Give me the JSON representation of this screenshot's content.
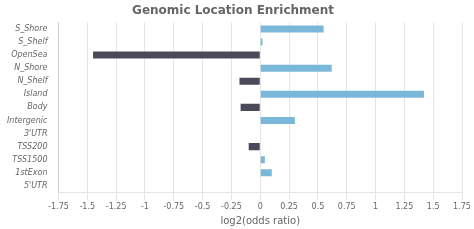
{
  "chart_data": {
    "type": "bar",
    "orientation": "horizontal",
    "title": "Genomic Location Enrichment",
    "xlabel": "log2(odds ratio)",
    "categories": [
      "S_Shore",
      "S_Shelf",
      "OpenSea",
      "N_Shore",
      "N_Shelf",
      "Island",
      "Body",
      "Intergenic",
      "3'UTR",
      "TSS200",
      "TSS1500",
      "1stExon",
      "5'UTR"
    ],
    "values": [
      0.55,
      0.02,
      -1.45,
      0.62,
      -0.18,
      1.42,
      -0.17,
      0.3,
      0.0,
      -0.1,
      0.04,
      0.1,
      0.0
    ],
    "colors": [
      "#7ab8d9",
      "#7ab8d9",
      "#4a4a5a",
      "#7ab8d9",
      "#4a4a5a",
      "#7ab8d9",
      "#4a4a5a",
      "#7ab8d9",
      "#7ab8d9",
      "#4a4a5a",
      "#7ab8d9",
      "#7ab8d9",
      "#7ab8d9"
    ],
    "xlim": [
      -1.75,
      1.75
    ],
    "xticks": [
      -1.75,
      -1.5,
      -1.25,
      -1.0,
      -0.75,
      -0.5,
      -0.25,
      0,
      0.25,
      0.5,
      0.75,
      1.0,
      1.25,
      1.5,
      1.75
    ],
    "grid": true
  }
}
